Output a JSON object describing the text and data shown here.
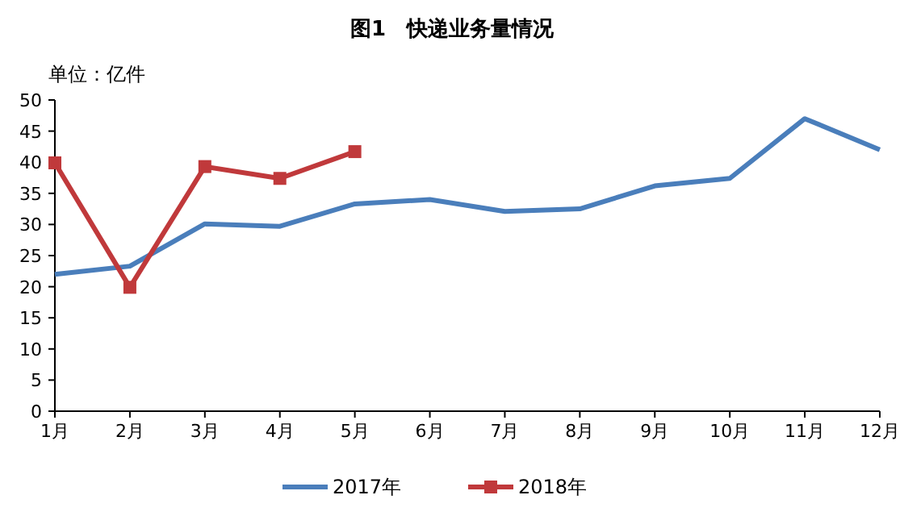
{
  "chart_data": {
    "type": "line",
    "title": "图1　快递业务量情况",
    "ylabel": "单位：亿件",
    "categories": [
      "1月",
      "2月",
      "3月",
      "4月",
      "5月",
      "6月",
      "7月",
      "8月",
      "9月",
      "10月",
      "11月",
      "12月"
    ],
    "series": [
      {
        "name": "2017年",
        "color": "#4a7ebb",
        "marker": "none",
        "values": [
          22,
          23.3,
          30.1,
          29.7,
          33.3,
          34,
          32.1,
          32.5,
          36.2,
          37.4,
          47,
          42
        ]
      },
      {
        "name": "2018年",
        "color": "#c0393b",
        "marker": "square",
        "values": [
          39.9,
          19.9,
          39.3,
          37.4,
          41.7,
          null,
          null,
          null,
          null,
          null,
          null,
          null
        ]
      }
    ],
    "ylim": [
      0,
      50
    ],
    "yticks": [
      0,
      5,
      10,
      15,
      20,
      25,
      30,
      35,
      40,
      45,
      50
    ],
    "legend": "bottom"
  }
}
